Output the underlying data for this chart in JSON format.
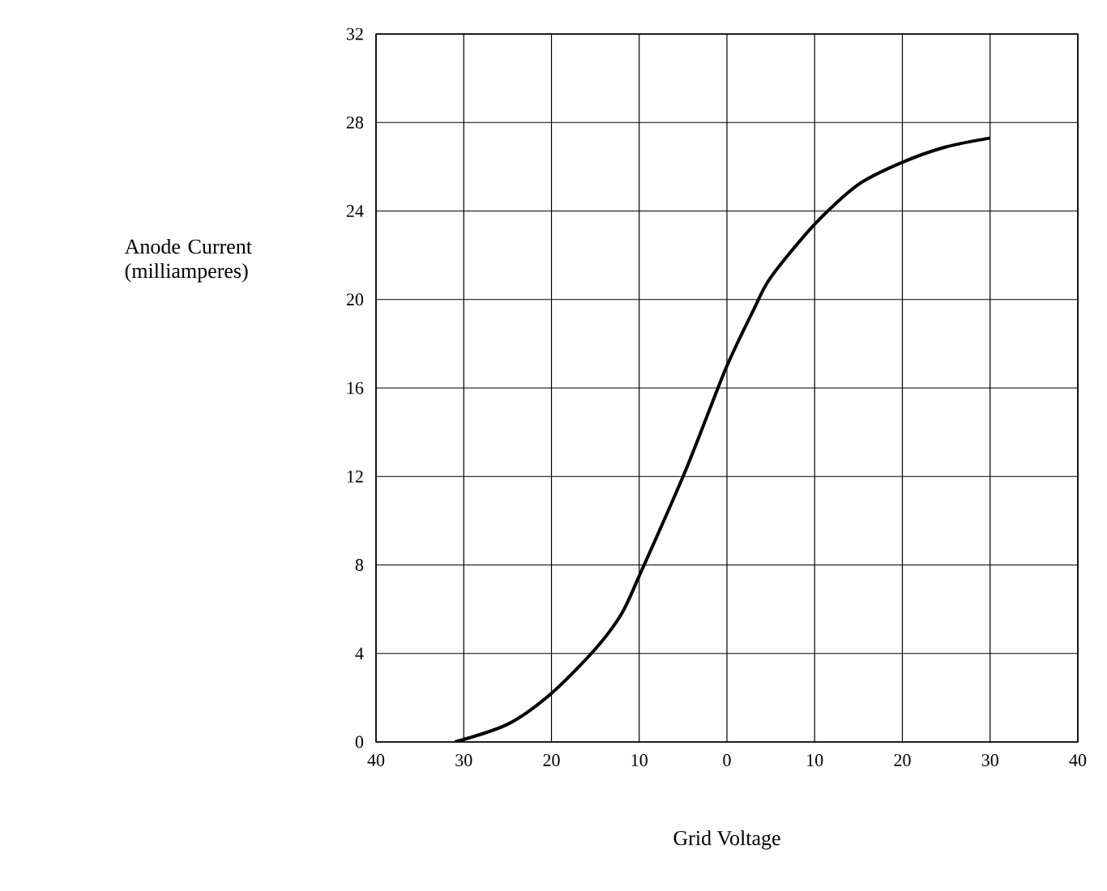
{
  "chart_data": {
    "type": "line",
    "xlabel": "Grid Voltage",
    "ylabel": "Anode Current (milliamperes)",
    "x": [
      -31,
      -25,
      -20,
      -15,
      -12,
      -10,
      -5,
      -2,
      0,
      3,
      5,
      10,
      15,
      20,
      25,
      30
    ],
    "series": [
      {
        "color": "#000000",
        "values": [
          0,
          0.8,
          2.2,
          4.2,
          5.8,
          7.5,
          12,
          15,
          17,
          19.5,
          21,
          23.4,
          25.2,
          26.2,
          26.9,
          27.3
        ]
      }
    ],
    "xlim": [
      -40,
      40
    ],
    "ylim": [
      0,
      32
    ],
    "xticks": [
      {
        "value": -40,
        "label": "40"
      },
      {
        "value": -30,
        "label": "30"
      },
      {
        "value": -20,
        "label": "20"
      },
      {
        "value": -10,
        "label": "10"
      },
      0,
      10,
      20,
      30,
      40
    ],
    "yticks": [
      0,
      4,
      8,
      12,
      16,
      20,
      24,
      28,
      32
    ],
    "grid": true,
    "marker": "none",
    "line_style": "solid"
  }
}
